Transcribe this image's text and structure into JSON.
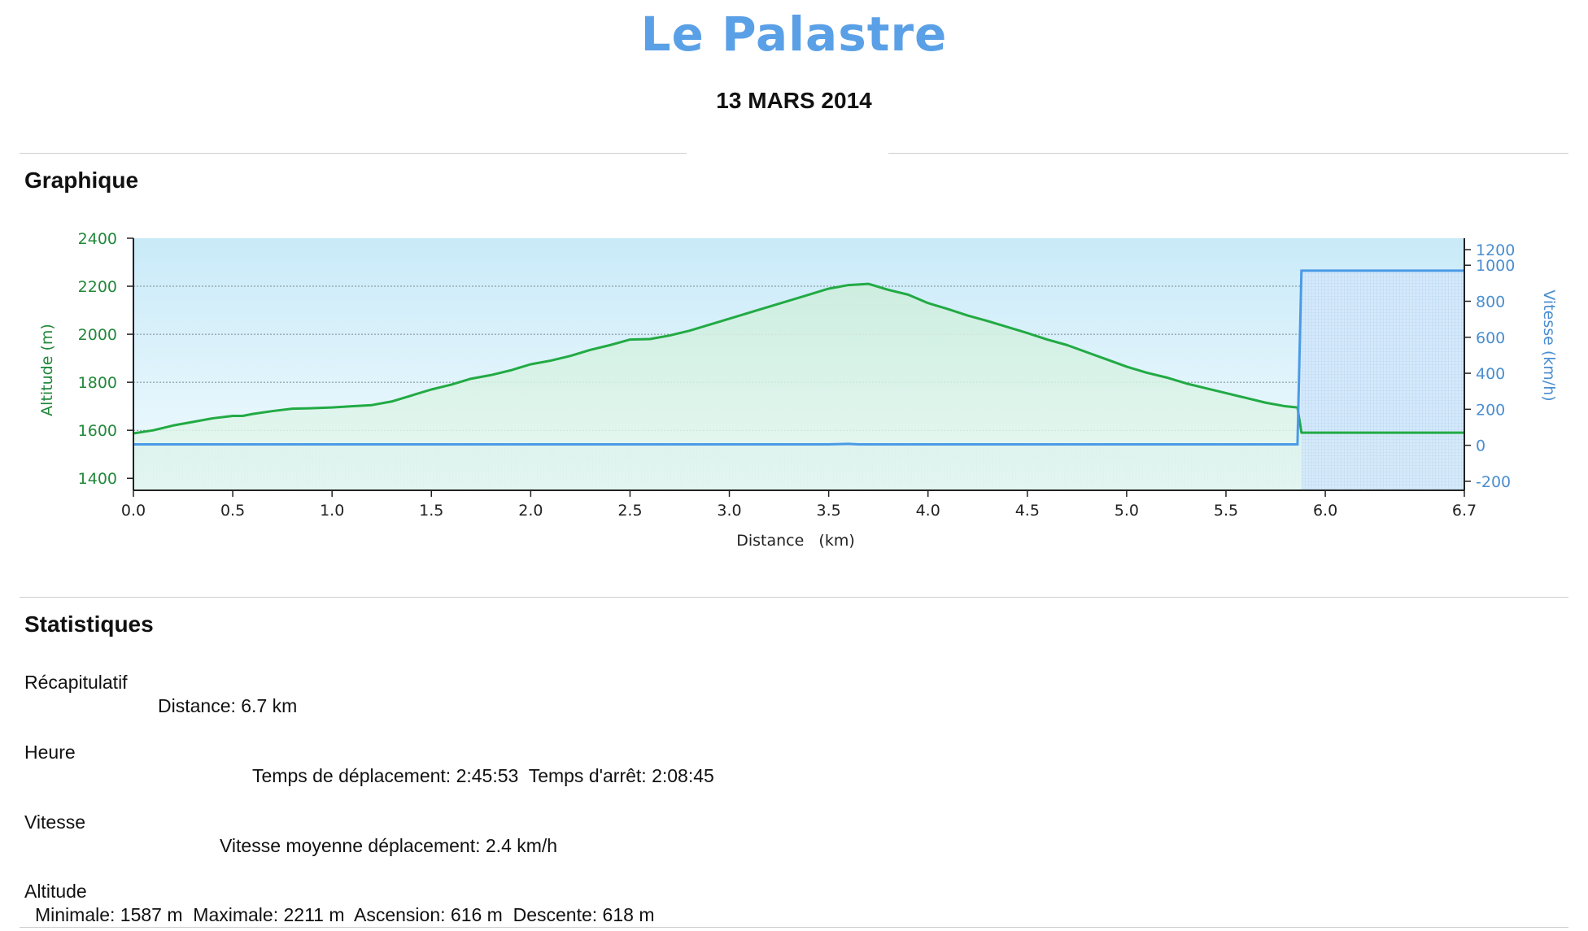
{
  "header": {
    "title": "Le Palastre",
    "date": "13 MARS 2014"
  },
  "sections": {
    "graph": "Graphique",
    "stats": "Statistiques"
  },
  "chart_data": {
    "type": "line",
    "xlabel": "Distance   (km)",
    "ylabel_left": "Altitude (m)",
    "ylabel_right": "Vitesse (km/h)",
    "x_ticks": [
      "0.0",
      "0.5",
      "1.0",
      "1.5",
      "2.0",
      "2.5",
      "3.0",
      "3.5",
      "4.0",
      "4.5",
      "5.0",
      "5.5",
      "6.0",
      "6.7"
    ],
    "y_left_ticks": [
      "2400",
      "2200",
      "2000",
      "1800",
      "1600",
      "1400"
    ],
    "y_right_ticks": [
      "1200",
      "1000",
      "800",
      "600",
      "400",
      "200",
      "0",
      "-200"
    ],
    "xlim": [
      0,
      6.7
    ],
    "ylim_left": [
      1350,
      2400
    ],
    "ylim_right": [
      -250,
      1150
    ],
    "grid": true,
    "colors": {
      "altitude": "#22aa44",
      "vitesse": "#4a9ae6",
      "left_axis": "#22883a",
      "right_axis": "#4a8ed0"
    },
    "series": [
      {
        "name": "Altitude",
        "axis": "left",
        "points": [
          [
            0.0,
            1587
          ],
          [
            0.1,
            1600
          ],
          [
            0.2,
            1620
          ],
          [
            0.3,
            1635
          ],
          [
            0.4,
            1650
          ],
          [
            0.5,
            1660
          ],
          [
            0.55,
            1660
          ],
          [
            0.6,
            1668
          ],
          [
            0.7,
            1680
          ],
          [
            0.8,
            1690
          ],
          [
            0.9,
            1692
          ],
          [
            1.0,
            1695
          ],
          [
            1.1,
            1700
          ],
          [
            1.2,
            1705
          ],
          [
            1.3,
            1720
          ],
          [
            1.4,
            1745
          ],
          [
            1.5,
            1770
          ],
          [
            1.6,
            1790
          ],
          [
            1.7,
            1815
          ],
          [
            1.8,
            1830
          ],
          [
            1.9,
            1850
          ],
          [
            2.0,
            1875
          ],
          [
            2.1,
            1890
          ],
          [
            2.2,
            1910
          ],
          [
            2.3,
            1935
          ],
          [
            2.4,
            1955
          ],
          [
            2.5,
            1978
          ],
          [
            2.6,
            1980
          ],
          [
            2.7,
            1995
          ],
          [
            2.8,
            2015
          ],
          [
            2.9,
            2040
          ],
          [
            3.0,
            2065
          ],
          [
            3.1,
            2090
          ],
          [
            3.2,
            2115
          ],
          [
            3.3,
            2140
          ],
          [
            3.4,
            2165
          ],
          [
            3.5,
            2190
          ],
          [
            3.6,
            2205
          ],
          [
            3.7,
            2210
          ],
          [
            3.8,
            2185
          ],
          [
            3.9,
            2165
          ],
          [
            4.0,
            2130
          ],
          [
            4.1,
            2105
          ],
          [
            4.2,
            2078
          ],
          [
            4.3,
            2055
          ],
          [
            4.4,
            2030
          ],
          [
            4.5,
            2005
          ],
          [
            4.6,
            1978
          ],
          [
            4.7,
            1955
          ],
          [
            4.8,
            1925
          ],
          [
            4.9,
            1895
          ],
          [
            5.0,
            1865
          ],
          [
            5.1,
            1840
          ],
          [
            5.2,
            1820
          ],
          [
            5.3,
            1795
          ],
          [
            5.4,
            1775
          ],
          [
            5.5,
            1755
          ],
          [
            5.6,
            1735
          ],
          [
            5.7,
            1715
          ],
          [
            5.8,
            1700
          ],
          [
            5.86,
            1695
          ],
          [
            5.88,
            1590
          ],
          [
            6.0,
            1590
          ],
          [
            6.7,
            1590
          ]
        ]
      },
      {
        "name": "Vitesse",
        "axis": "right",
        "points": [
          [
            0.0,
            5
          ],
          [
            3.5,
            5
          ],
          [
            3.6,
            8
          ],
          [
            3.65,
            5
          ],
          [
            5.86,
            5
          ],
          [
            5.88,
            970
          ],
          [
            6.7,
            970
          ]
        ]
      }
    ]
  },
  "stats": {
    "recap": {
      "label": "Récapitulatif",
      "line": "Distance: 6.7 km"
    },
    "heure": {
      "label": "Heure",
      "line": "Temps de déplacement: 2:45:53  Temps d'arrêt: 2:08:45"
    },
    "vitesse": {
      "label": "Vitesse",
      "line": "Vitesse moyenne déplacement: 2.4 km/h"
    },
    "altitude": {
      "label": "Altitude",
      "line": "Minimale: 1587 m  Maximale: 2211 m  Ascension: 616 m  Descente: 618 m"
    }
  }
}
